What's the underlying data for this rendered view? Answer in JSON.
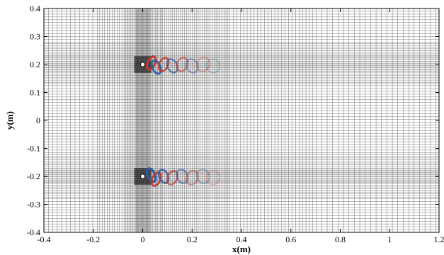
{
  "chart_data": {
    "type": "heatmap",
    "title": "",
    "xlabel": "x(m)",
    "ylabel": "y(m)",
    "xlim": [
      -0.4,
      1.2
    ],
    "ylim": [
      -0.4,
      0.4
    ],
    "xticks": [
      -0.4,
      -0.2,
      0,
      0.2,
      0.4,
      0.6,
      0.8,
      1,
      1.2
    ],
    "xtick_labels": [
      "-0.4",
      "-0.2",
      "0",
      "0.2",
      "0.4",
      "0.6",
      "0.8",
      "1",
      "1.2"
    ],
    "yticks": [
      -0.4,
      -0.3,
      -0.2,
      -0.1,
      0,
      0.1,
      0.2,
      0.3,
      0.4
    ],
    "ytick_labels": [
      "-0.4",
      "-0.3",
      "-0.2",
      "-0.1",
      "0",
      "0.1",
      "0.2",
      "0.3",
      "0.4"
    ],
    "grid": true,
    "cylinders": [
      {
        "x": 0,
        "y": 0.2,
        "diameter": 0.02
      },
      {
        "x": 0,
        "y": -0.2,
        "diameter": 0.02
      }
    ],
    "vortices": [
      {
        "x": 0.035,
        "y": 0.205,
        "sign": 1
      },
      {
        "x": 0.055,
        "y": 0.19,
        "sign": -1
      },
      {
        "x": 0.085,
        "y": 0.2,
        "sign": 1
      },
      {
        "x": 0.12,
        "y": 0.195,
        "sign": -1
      },
      {
        "x": 0.16,
        "y": 0.2,
        "sign": 1
      },
      {
        "x": 0.2,
        "y": 0.195,
        "sign": -1
      },
      {
        "x": 0.245,
        "y": 0.2,
        "sign": 1
      },
      {
        "x": 0.285,
        "y": 0.195,
        "sign": -1
      },
      {
        "x": 0.035,
        "y": -0.195,
        "sign": -1
      },
      {
        "x": 0.055,
        "y": -0.21,
        "sign": 1
      },
      {
        "x": 0.085,
        "y": -0.2,
        "sign": -1
      },
      {
        "x": 0.12,
        "y": -0.205,
        "sign": 1
      },
      {
        "x": 0.16,
        "y": -0.2,
        "sign": -1
      },
      {
        "x": 0.2,
        "y": -0.205,
        "sign": 1
      },
      {
        "x": 0.245,
        "y": -0.2,
        "sign": -1
      },
      {
        "x": 0.285,
        "y": -0.205,
        "sign": 1
      }
    ],
    "colors": {
      "grid": "#000000",
      "positive_vorticity": "#c0392b",
      "negative_vorticity": "#2c5aa0",
      "cylinder": "#ffffff"
    }
  }
}
